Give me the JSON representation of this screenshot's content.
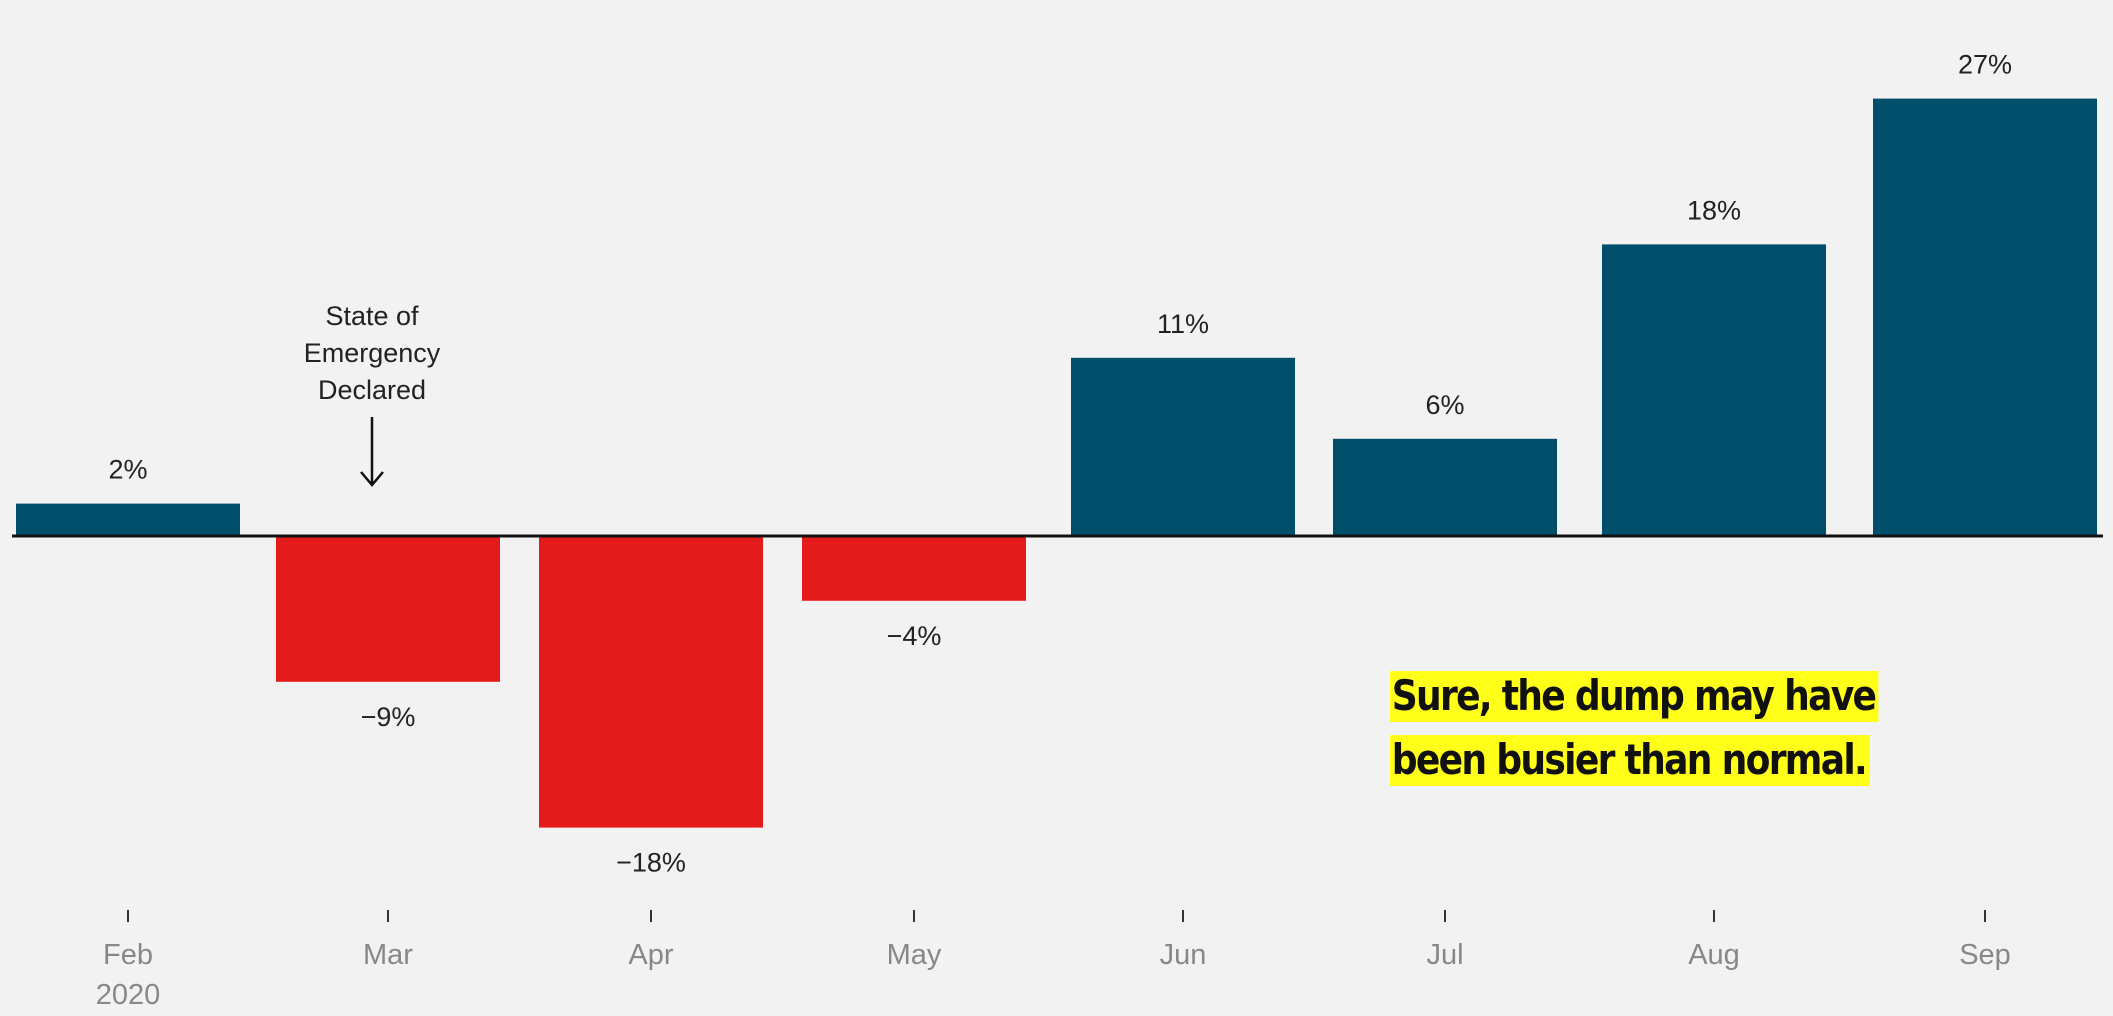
{
  "chart_data": {
    "type": "bar",
    "categories": [
      "Feb",
      "Mar",
      "Apr",
      "May",
      "Jun",
      "Jul",
      "Aug",
      "Sep"
    ],
    "year_label": "2020",
    "values": [
      2,
      -9,
      -18,
      -4,
      11,
      6,
      18,
      27
    ],
    "value_labels": [
      "2%",
      "−9%",
      "−18%",
      "−4%",
      "11%",
      "6%",
      "18%",
      "27%"
    ],
    "ylim": [
      -18,
      27
    ],
    "grid": false,
    "colors": {
      "positive": "#004f6a",
      "negative": "#e31b1b",
      "baseline": "#111111",
      "text": "#222222",
      "axis_text": "#888888",
      "tick": "#333333"
    },
    "annotation": {
      "lines": [
        "State of",
        "Emergency",
        "Declared"
      ],
      "category": "Mar"
    }
  },
  "callout": {
    "text": "Sure, the dump may have been busier than normal.",
    "highlight_color": "#ffff1a"
  }
}
